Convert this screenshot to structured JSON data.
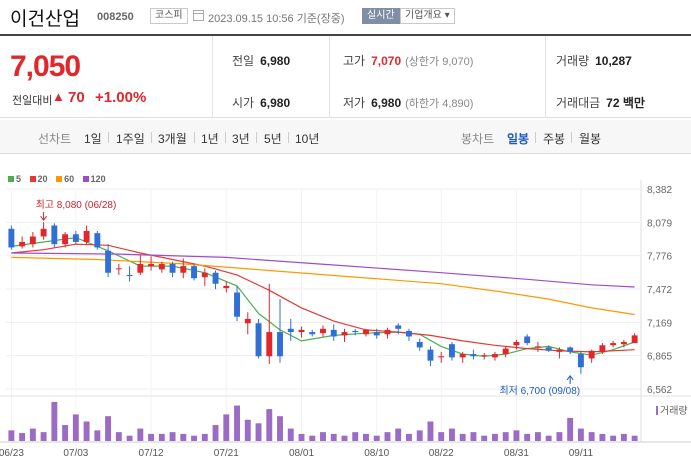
{
  "header": {
    "name": "이건산업",
    "code": "008250",
    "market": "코스피",
    "timestamp": "2023.09.15 10:56 기준(장중)",
    "live": "실시간",
    "company_info": "기업개요 ▾"
  },
  "quote": {
    "price": "7,050",
    "change_label": "전일대비",
    "change_arrow": "▲",
    "change": "70",
    "change_pct": "+1.00%",
    "prev_close_label": "전일",
    "prev_close": "6,980",
    "high_label": "고가",
    "high": "7,070",
    "upper_limit": "(상한가 9,070)",
    "volume_label": "거래량",
    "volume": "10,287",
    "open_label": "시가",
    "open": "6,980",
    "low_label": "저가",
    "low": "6,980",
    "lower_limit": "(하한가 4,890)",
    "amount_label": "거래대금",
    "amount": "72 백만"
  },
  "periods": {
    "line_label": "선차트",
    "line_items": [
      "1일",
      "1주일",
      "3개월",
      "1년",
      "3년",
      "5년",
      "10년"
    ],
    "candle_label": "봉차트",
    "candle_items": [
      "일봉",
      "주봉",
      "월봉"
    ],
    "candle_active": "일봉"
  },
  "legend": [
    {
      "label": "5",
      "color": "#4caf50"
    },
    {
      "label": "20",
      "color": "#e53935"
    },
    {
      "label": "60",
      "color": "#ff9800"
    },
    {
      "label": "120",
      "color": "#9c4dcc"
    }
  ],
  "colors": {
    "up": "#e1262c",
    "down": "#2f6fd6",
    "volume": "#9c6cc4"
  },
  "chart_data": {
    "type": "candlestick",
    "y_ticks": [
      "8,382",
      "8,079",
      "7,776",
      "7,472",
      "7,169",
      "6,865",
      "6,562"
    ],
    "ylim": [
      6562,
      8382
    ],
    "x_labels": [
      {
        "label": "06/23",
        "i": 0
      },
      {
        "label": "07/03",
        "i": 6
      },
      {
        "label": "07/12",
        "i": 13
      },
      {
        "label": "07/21",
        "i": 20
      },
      {
        "label": "08/01",
        "i": 27
      },
      {
        "label": "08/10",
        "i": 34
      },
      {
        "label": "08/22",
        "i": 40
      },
      {
        "label": "08/31",
        "i": 47
      },
      {
        "label": "09/11",
        "i": 53
      }
    ],
    "annotations": {
      "high": {
        "text": "최고 8,080 (06/28)",
        "i": 3,
        "value": 8080
      },
      "low": {
        "text": "최저 6,700 (09/08)",
        "i": 52,
        "value": 6700
      }
    },
    "volume_label": "거래량",
    "candles": [
      {
        "o": 8020,
        "h": 8050,
        "l": 7830,
        "c": 7850
      },
      {
        "o": 7860,
        "h": 7950,
        "l": 7840,
        "c": 7900
      },
      {
        "o": 7880,
        "h": 7990,
        "l": 7850,
        "c": 7950
      },
      {
        "o": 7950,
        "h": 8080,
        "l": 7920,
        "c": 8020
      },
      {
        "o": 8050,
        "h": 8070,
        "l": 7850,
        "c": 7880
      },
      {
        "o": 7880,
        "h": 7990,
        "l": 7850,
        "c": 7970
      },
      {
        "o": 7970,
        "h": 8000,
        "l": 7880,
        "c": 7900
      },
      {
        "o": 7900,
        "h": 8050,
        "l": 7880,
        "c": 8000
      },
      {
        "o": 7980,
        "h": 8000,
        "l": 7830,
        "c": 7850
      },
      {
        "o": 7820,
        "h": 7880,
        "l": 7580,
        "c": 7620
      },
      {
        "o": 7660,
        "h": 7700,
        "l": 7600,
        "c": 7660
      },
      {
        "o": 7600,
        "h": 7680,
        "l": 7540,
        "c": 7590
      },
      {
        "o": 7620,
        "h": 7780,
        "l": 7600,
        "c": 7700
      },
      {
        "o": 7680,
        "h": 7770,
        "l": 7640,
        "c": 7700
      },
      {
        "o": 7650,
        "h": 7720,
        "l": 7620,
        "c": 7700
      },
      {
        "o": 7700,
        "h": 7720,
        "l": 7580,
        "c": 7620
      },
      {
        "o": 7620,
        "h": 7750,
        "l": 7570,
        "c": 7680
      },
      {
        "o": 7680,
        "h": 7700,
        "l": 7550,
        "c": 7570
      },
      {
        "o": 7580,
        "h": 7660,
        "l": 7500,
        "c": 7620
      },
      {
        "o": 7620,
        "h": 7640,
        "l": 7470,
        "c": 7520
      },
      {
        "o": 7480,
        "h": 7540,
        "l": 7440,
        "c": 7500
      },
      {
        "o": 7440,
        "h": 7500,
        "l": 7180,
        "c": 7220
      },
      {
        "o": 7160,
        "h": 7260,
        "l": 7060,
        "c": 7200
      },
      {
        "o": 7160,
        "h": 7200,
        "l": 6840,
        "c": 6860
      },
      {
        "o": 6860,
        "h": 7520,
        "l": 6790,
        "c": 7080
      },
      {
        "o": 7080,
        "h": 7380,
        "l": 6800,
        "c": 6860
      },
      {
        "o": 7110,
        "h": 7200,
        "l": 7000,
        "c": 7080
      },
      {
        "o": 7080,
        "h": 7130,
        "l": 7030,
        "c": 7100
      },
      {
        "o": 7080,
        "h": 7100,
        "l": 7040,
        "c": 7060
      },
      {
        "o": 7070,
        "h": 7140,
        "l": 7040,
        "c": 7110
      },
      {
        "o": 7100,
        "h": 7150,
        "l": 7000,
        "c": 7040
      },
      {
        "o": 7050,
        "h": 7110,
        "l": 6990,
        "c": 7080
      },
      {
        "o": 7090,
        "h": 7110,
        "l": 7050,
        "c": 7080
      },
      {
        "o": 7060,
        "h": 7110,
        "l": 7040,
        "c": 7100
      },
      {
        "o": 7080,
        "h": 7110,
        "l": 7020,
        "c": 7050
      },
      {
        "o": 7060,
        "h": 7120,
        "l": 7020,
        "c": 7100
      },
      {
        "o": 7140,
        "h": 7160,
        "l": 7060,
        "c": 7110
      },
      {
        "o": 7090,
        "h": 7110,
        "l": 7000,
        "c": 7040
      },
      {
        "o": 6990,
        "h": 7020,
        "l": 6910,
        "c": 6940
      },
      {
        "o": 6920,
        "h": 6950,
        "l": 6770,
        "c": 6820
      },
      {
        "o": 6850,
        "h": 6900,
        "l": 6800,
        "c": 6860
      },
      {
        "o": 6970,
        "h": 6990,
        "l": 6820,
        "c": 6850
      },
      {
        "o": 6850,
        "h": 6900,
        "l": 6800,
        "c": 6880
      },
      {
        "o": 6880,
        "h": 6920,
        "l": 6830,
        "c": 6860
      },
      {
        "o": 6860,
        "h": 6890,
        "l": 6830,
        "c": 6870
      },
      {
        "o": 6850,
        "h": 6900,
        "l": 6820,
        "c": 6880
      },
      {
        "o": 6880,
        "h": 6950,
        "l": 6850,
        "c": 6930
      },
      {
        "o": 6960,
        "h": 7010,
        "l": 6920,
        "c": 6990
      },
      {
        "o": 7040,
        "h": 7060,
        "l": 6960,
        "c": 6980
      },
      {
        "o": 6950,
        "h": 6990,
        "l": 6900,
        "c": 6950
      },
      {
        "o": 6940,
        "h": 6960,
        "l": 6900,
        "c": 6910
      },
      {
        "o": 6900,
        "h": 6940,
        "l": 6840,
        "c": 6920
      },
      {
        "o": 6940,
        "h": 6950,
        "l": 6880,
        "c": 6900
      },
      {
        "o": 6880,
        "h": 6900,
        "l": 6700,
        "c": 6760
      },
      {
        "o": 6840,
        "h": 6920,
        "l": 6800,
        "c": 6910
      },
      {
        "o": 6900,
        "h": 6980,
        "l": 6880,
        "c": 6960
      },
      {
        "o": 6960,
        "h": 7000,
        "l": 6940,
        "c": 6980
      },
      {
        "o": 6970,
        "h": 7010,
        "l": 6940,
        "c": 6990
      },
      {
        "o": 6980,
        "h": 7070,
        "l": 6980,
        "c": 7050
      }
    ],
    "volumes": [
      12,
      9,
      14,
      10,
      44,
      18,
      30,
      22,
      12,
      28,
      10,
      6,
      14,
      8,
      8,
      10,
      8,
      6,
      8,
      18,
      30,
      40,
      24,
      20,
      36,
      28,
      14,
      8,
      6,
      10,
      8,
      6,
      10,
      8,
      6,
      10,
      14,
      8,
      12,
      22,
      10,
      14,
      8,
      10,
      6,
      8,
      10,
      12,
      8,
      10,
      6,
      10,
      26,
      14,
      10,
      8,
      6,
      8,
      6
    ],
    "ma": {
      "5": [
        [
          0,
          7860
        ],
        [
          3,
          7900
        ],
        [
          6,
          7940
        ],
        [
          9,
          7820
        ],
        [
          12,
          7680
        ],
        [
          15,
          7680
        ],
        [
          18,
          7620
        ],
        [
          21,
          7500
        ],
        [
          23,
          7250
        ],
        [
          25,
          7100
        ],
        [
          27,
          7000
        ],
        [
          30,
          7050
        ],
        [
          33,
          7070
        ],
        [
          36,
          7080
        ],
        [
          38,
          7060
        ],
        [
          40,
          6950
        ],
        [
          42,
          6880
        ],
        [
          44,
          6860
        ],
        [
          46,
          6880
        ],
        [
          48,
          6930
        ],
        [
          50,
          6950
        ],
        [
          52,
          6900
        ],
        [
          54,
          6870
        ],
        [
          56,
          6920
        ],
        [
          58,
          6990
        ]
      ],
      "20": [
        [
          0,
          7800
        ],
        [
          3,
          7830
        ],
        [
          6,
          7880
        ],
        [
          9,
          7870
        ],
        [
          12,
          7800
        ],
        [
          15,
          7740
        ],
        [
          18,
          7680
        ],
        [
          21,
          7600
        ],
        [
          24,
          7460
        ],
        [
          27,
          7300
        ],
        [
          30,
          7180
        ],
        [
          33,
          7100
        ],
        [
          36,
          7080
        ],
        [
          39,
          7050
        ],
        [
          42,
          7000
        ],
        [
          45,
          6960
        ],
        [
          48,
          6930
        ],
        [
          51,
          6910
        ],
        [
          54,
          6900
        ],
        [
          58,
          6920
        ]
      ],
      "60": [
        [
          0,
          7760
        ],
        [
          8,
          7740
        ],
        [
          16,
          7700
        ],
        [
          24,
          7640
        ],
        [
          32,
          7580
        ],
        [
          40,
          7520
        ],
        [
          46,
          7440
        ],
        [
          50,
          7380
        ],
        [
          54,
          7300
        ],
        [
          58,
          7240
        ]
      ],
      "120": [
        [
          0,
          7800
        ],
        [
          10,
          7790
        ],
        [
          20,
          7760
        ],
        [
          30,
          7690
        ],
        [
          40,
          7620
        ],
        [
          48,
          7560
        ],
        [
          54,
          7510
        ],
        [
          58,
          7490
        ]
      ]
    }
  }
}
